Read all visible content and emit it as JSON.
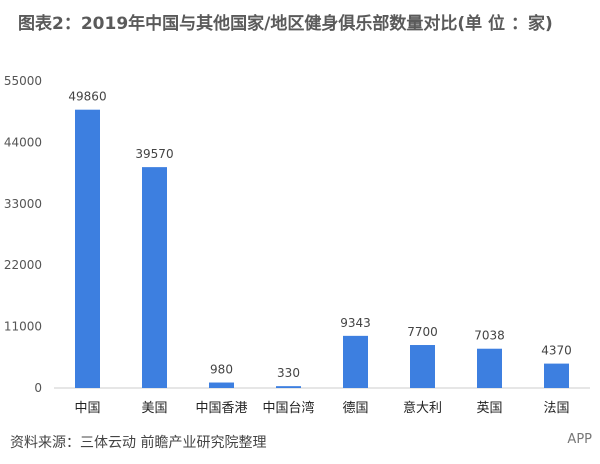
{
  "chart_data": {
    "type": "bar",
    "title": "图表2：2019年中国与其他国家/地区健身俱乐部数量对比(单 位 ：家)",
    "categories": [
      "中国",
      "美国",
      "中国香港",
      "中国台湾",
      "德国",
      "意大利",
      "英国",
      "法国"
    ],
    "values": [
      49860,
      39570,
      980,
      330,
      9343,
      7700,
      7038,
      4370
    ],
    "ylim": [
      0,
      55000
    ],
    "yticks": [
      0,
      11000,
      22000,
      33000,
      44000,
      55000
    ],
    "xlabel": "",
    "ylabel": "",
    "grid": false,
    "bar_color": "#3d7fe0"
  },
  "footer": {
    "source": "资料来源：三体云动 前瞻产业研究院整理",
    "brand": "APP"
  }
}
